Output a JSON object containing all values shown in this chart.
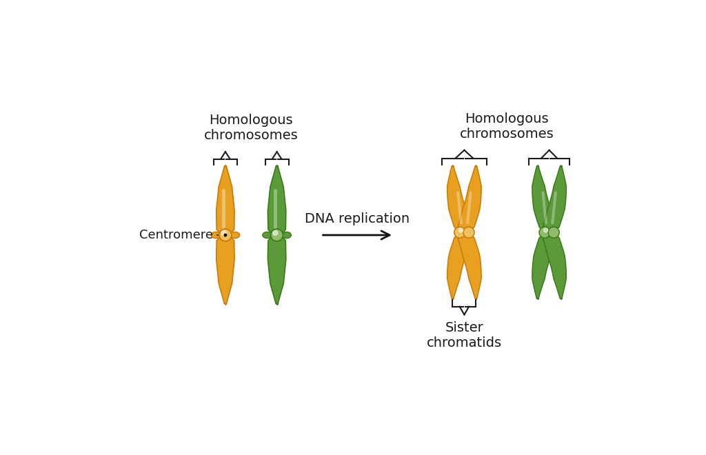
{
  "bg_color": "#ffffff",
  "orange_color": "#E8A020",
  "orange_dark": "#C87808",
  "orange_light": "#F0C060",
  "orange_centromere": "#EFC060",
  "green_color": "#5A9A38",
  "green_dark": "#3A7A18",
  "green_light": "#7ABB58",
  "green_centromere": "#90BB6A",
  "text_color": "#1a1a1a",
  "arrow_color": "#111111",
  "label_homologous": "Homologous\nchromosomes",
  "label_centromere": "Centromere",
  "label_dna": "DNA replication",
  "label_sister": "Sister\nchromatids",
  "font_size_label": 14,
  "font_size_centromere": 13
}
